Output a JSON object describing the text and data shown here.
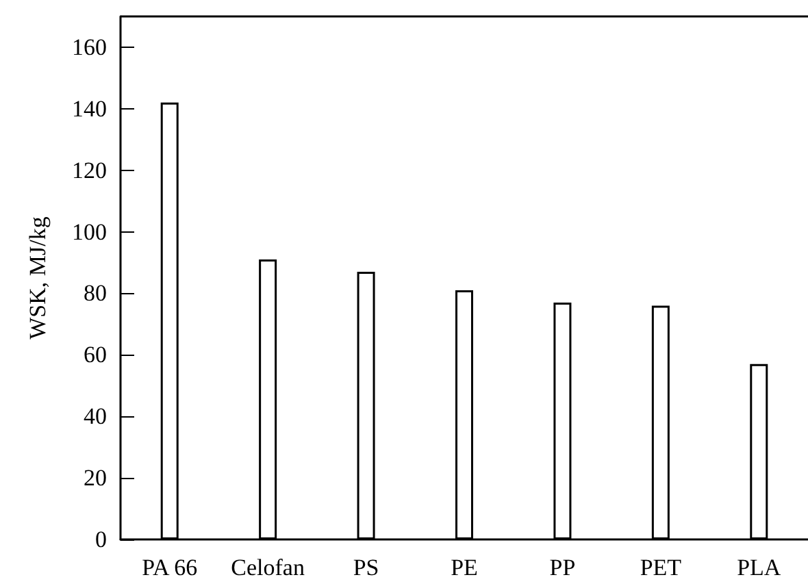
{
  "chart_data": {
    "type": "bar",
    "ylabel": "WSK, MJ/kg",
    "categories": [
      "PA 66",
      "Celofan",
      "PS",
      "PE",
      "PP",
      "PET",
      "PLA"
    ],
    "values": [
      142,
      91,
      87,
      81,
      77,
      76,
      57
    ],
    "color": "#ffffff",
    "ylim": [
      0,
      170
    ],
    "yticks": [
      0,
      20,
      40,
      60,
      80,
      100,
      120,
      140,
      160
    ],
    "grid": false
  }
}
